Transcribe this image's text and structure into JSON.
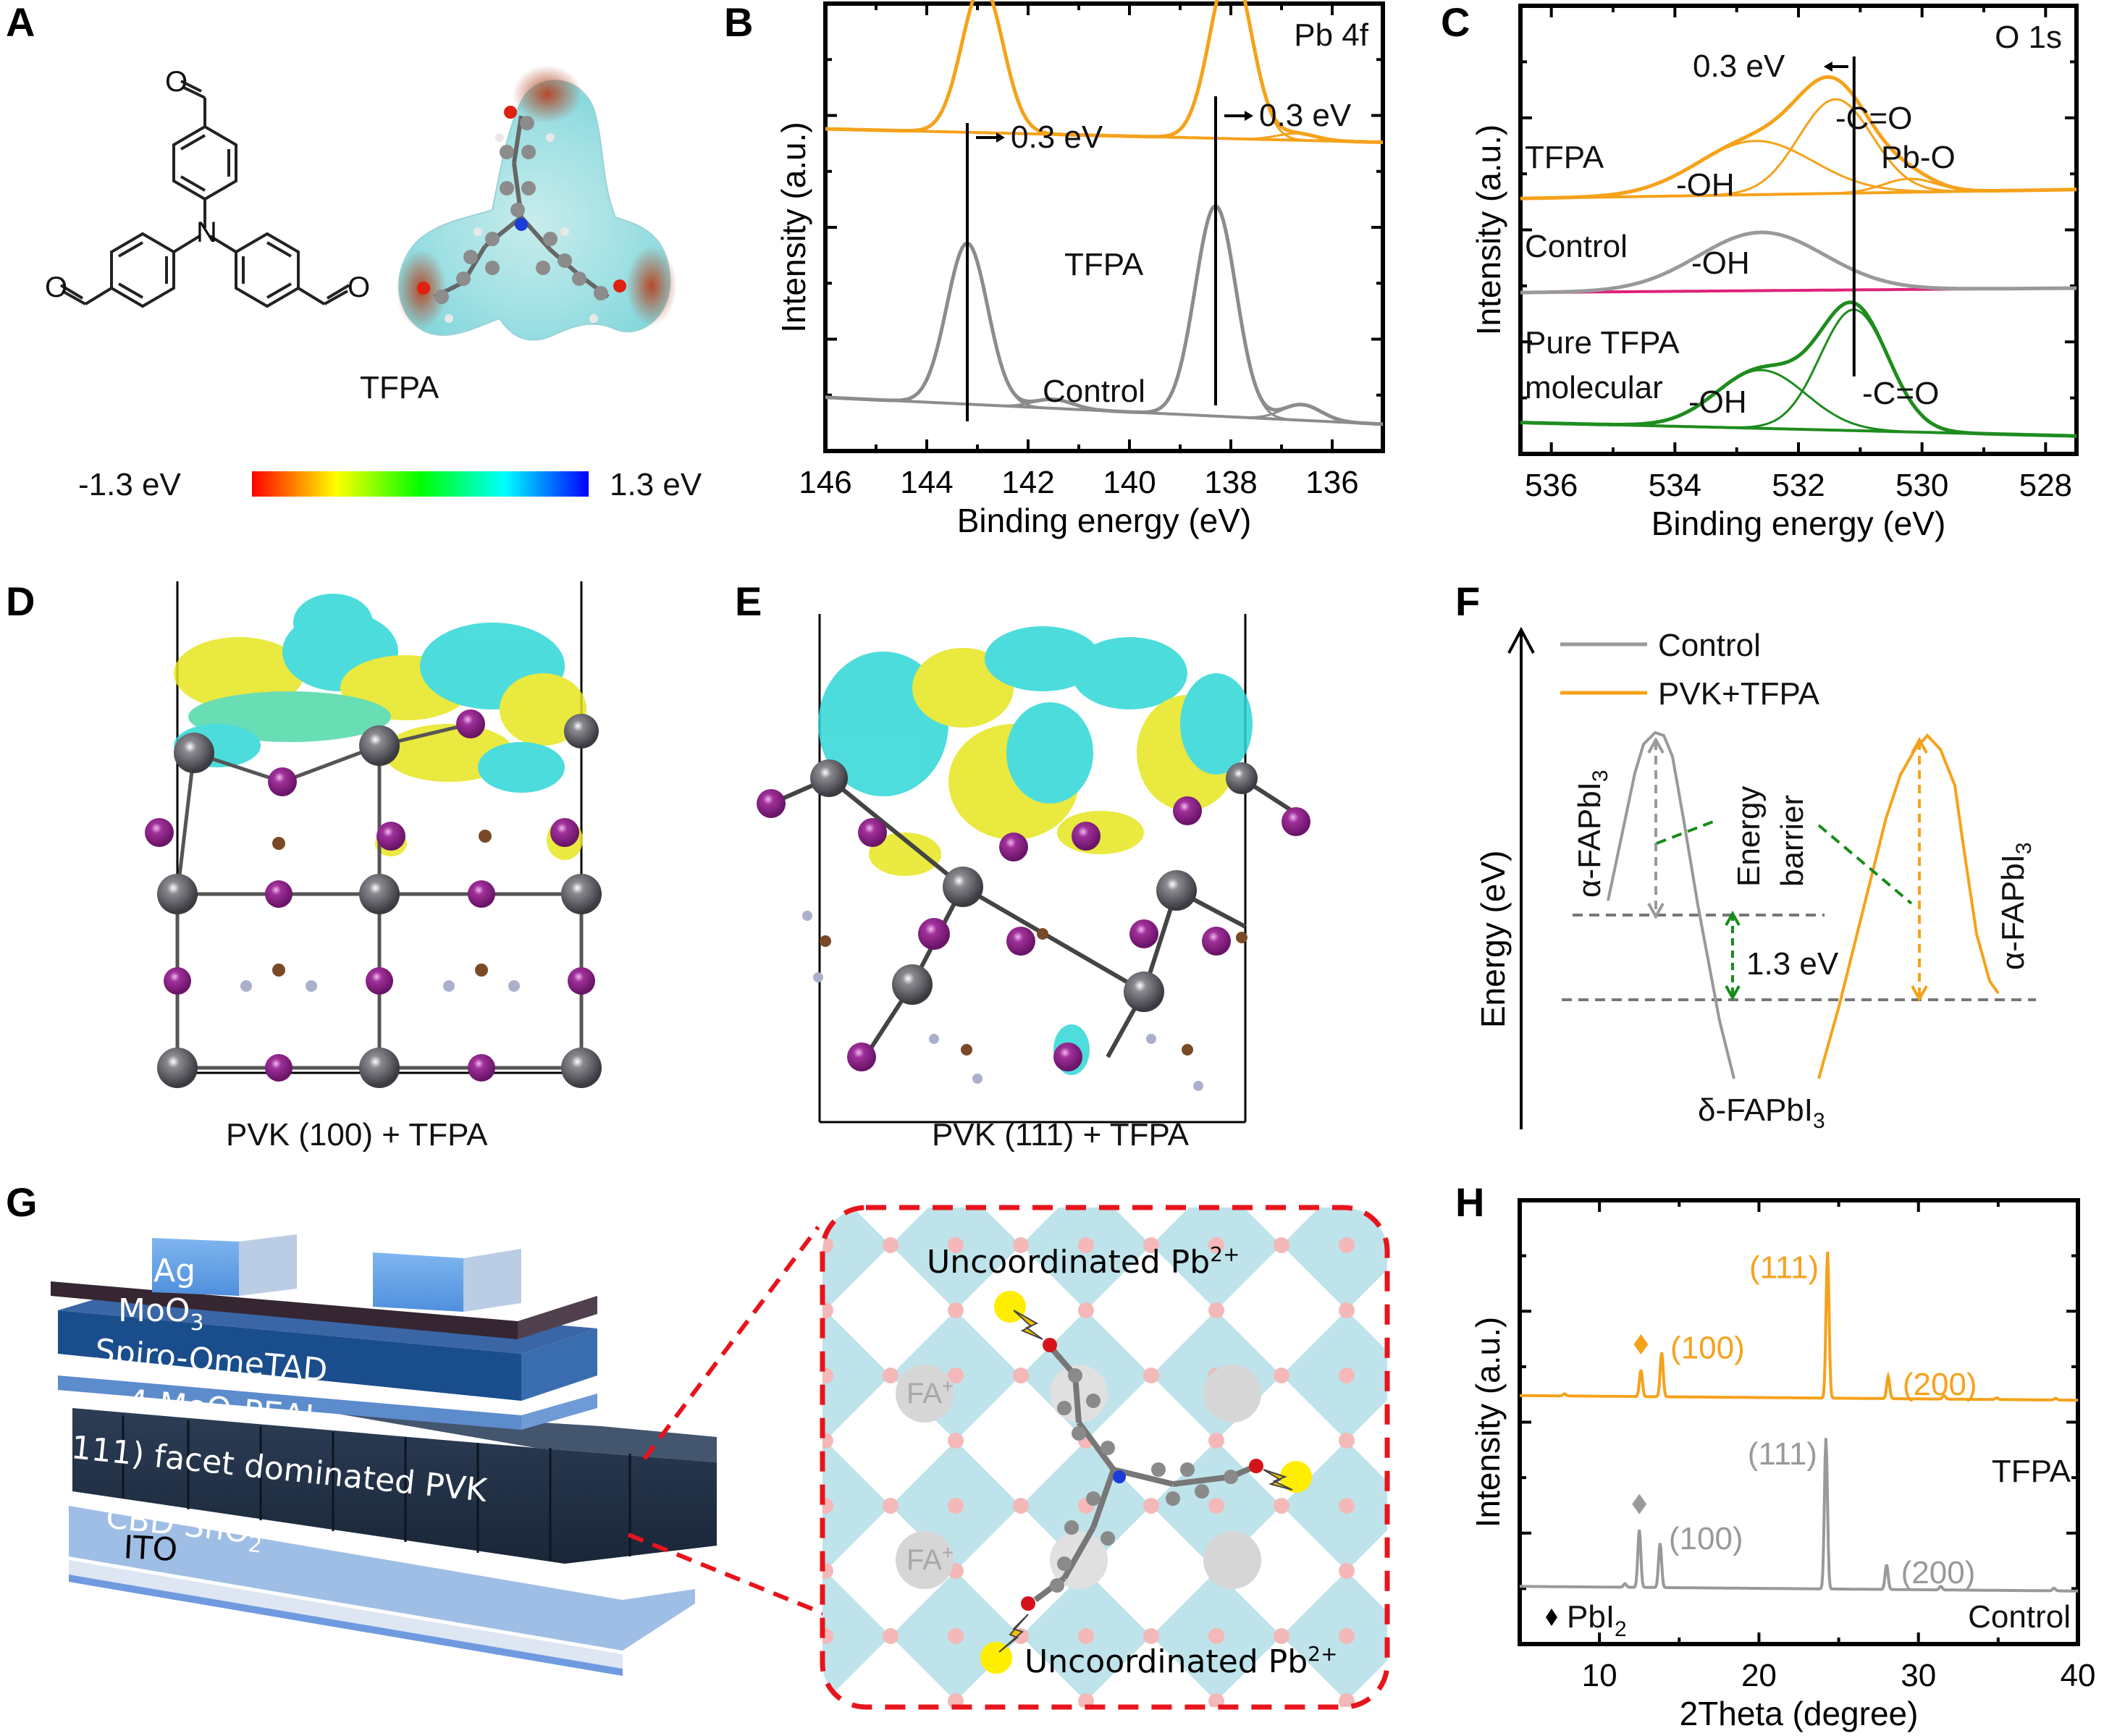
{
  "figure": {
    "panels": [
      "A",
      "B",
      "C",
      "D",
      "E",
      "F",
      "G",
      "H"
    ]
  },
  "panel_a": {
    "letter": "A",
    "molecule_name": "TFPA",
    "atom_N": "N",
    "atom_O": "O",
    "colorbar_min_label": "-1.3 eV",
    "colorbar_max_label": "1.3 eV",
    "colorbar_stops": [
      "#ff0000",
      "#ff8000",
      "#ffff00",
      "#00ff00",
      "#00ffff",
      "#0000ff"
    ]
  },
  "panel_d": {
    "letter": "D",
    "caption": "PVK (100) + TFPA"
  },
  "panel_e": {
    "letter": "E",
    "caption": "PVK (111) + TFPA"
  },
  "panel_f": {
    "letter": "F",
    "ylabel": "Energy (eV)",
    "legend": [
      {
        "name": "Control",
        "color": "#999999"
      },
      {
        "name": "PVK+TFPA",
        "color": "#f5a21b"
      }
    ],
    "label_alpha_left": "α-FAPbI",
    "label_alpha_right": "α-FAPbI",
    "label_delta": "δ-FAPbI",
    "subscript": "3",
    "barrier_line1": "Energy",
    "barrier_line2": "barrier",
    "gap_label": "1.3 eV",
    "gap_color": "#1a8a1a"
  },
  "panel_g": {
    "letter": "G",
    "layers": [
      "Ag",
      "MoO",
      "Spiro-OmeTAD",
      "4-MeO-PEAI",
      "(111) facet dominated PVK",
      "CBD SnO",
      "ITO"
    ],
    "layer_subscripts": {
      "MoO": "3",
      "CBD SnO": "2"
    },
    "zoom_label_top": "Uncoordinated Pb",
    "zoom_label_bottom": "Uncoordinated Pb",
    "charge": "2+",
    "cation": "FA",
    "cation_charge": "+",
    "zoom_border_color": "#e8141c"
  },
  "chart_data": [
    {
      "panel": "B",
      "type": "line",
      "title": "Pb 4f",
      "xlabel": "Binding energy (eV)",
      "ylabel": "Intensity (a.u.)",
      "xlim": [
        146,
        135
      ],
      "x_ticks": [
        146,
        144,
        142,
        140,
        138,
        136
      ],
      "y_ticks_labeled": false,
      "legend": "none",
      "annotations": [
        {
          "text": "0.3 eV",
          "x": 143.1,
          "arrow": "right"
        },
        {
          "text": "0.3 eV",
          "x": 138.3,
          "arrow": "right"
        }
      ],
      "reference_lines_x": [
        143.2,
        138.3
      ],
      "series": [
        {
          "name": "TFPA",
          "color": "#f5a21b",
          "baseline": [
            0.72,
            0.69
          ],
          "peaks": [
            {
              "center": 142.9,
              "height": 0.33,
              "fwhm": 0.95
            },
            {
              "center": 138.0,
              "height": 0.39,
              "fwhm": 0.95
            },
            {
              "center": 136.7,
              "height": 0.015,
              "fwhm": 0.9
            }
          ]
        },
        {
          "name": "Control",
          "color": "#8c8c8c",
          "baseline": [
            0.12,
            0.06
          ],
          "peaks": [
            {
              "center": 143.2,
              "height": 0.36,
              "fwhm": 0.95
            },
            {
              "center": 141.5,
              "height": 0.02,
              "fwhm": 0.9
            },
            {
              "center": 138.3,
              "height": 0.47,
              "fwhm": 0.95
            },
            {
              "center": 136.6,
              "height": 0.035,
              "fwhm": 0.9
            }
          ]
        }
      ]
    },
    {
      "panel": "C",
      "type": "line",
      "title": "O 1s",
      "xlabel": "Binding energy (eV)",
      "ylabel": "Intensity (a.u.)",
      "xlim": [
        536.5,
        527.5
      ],
      "x_ticks": [
        536,
        534,
        532,
        530,
        528
      ],
      "y_ticks_labeled": false,
      "legend": "none",
      "annotations": [
        {
          "text": "0.3 eV",
          "arrow": "left",
          "x": 531.1
        },
        {
          "text": "-C=O",
          "series": "TFPA"
        },
        {
          "text": "-OH",
          "series": "TFPA"
        },
        {
          "text": "Pb-O",
          "series": "TFPA"
        },
        {
          "text": "-OH",
          "series": "Control"
        },
        {
          "text": "-C=O",
          "series": "Pure TFPA molecular"
        },
        {
          "text": "-OH",
          "series": "Pure TFPA molecular"
        }
      ],
      "reference_lines_x": [
        531.1
      ],
      "series": [
        {
          "name": "TFPA",
          "color": "#f5a21b",
          "baseline": [
            0.57,
            0.59
          ],
          "peaks": [
            {
              "label": "-OH",
              "center": 532.7,
              "height": 0.12,
              "fwhm": 2.2
            },
            {
              "label": "-C=O",
              "center": 531.4,
              "height": 0.21,
              "fwhm": 1.4
            },
            {
              "label": "Pb-O",
              "center": 530.2,
              "height": 0.03,
              "fwhm": 1.0
            }
          ]
        },
        {
          "name": "Control",
          "color": "#999999",
          "background_color": "#e0217a",
          "baseline": [
            0.36,
            0.37
          ],
          "peaks": [
            {
              "label": "-OH",
              "center": 532.6,
              "height": 0.13,
              "fwhm": 2.4
            }
          ]
        },
        {
          "name": "Pure TFPA molecular",
          "color": "#1e8c1e",
          "baseline": [
            0.07,
            0.04
          ],
          "peaks": [
            {
              "label": "-OH",
              "center": 532.6,
              "height": 0.13,
              "fwhm": 1.7
            },
            {
              "label": "-C=O",
              "center": 531.1,
              "height": 0.27,
              "fwhm": 1.3
            }
          ]
        }
      ]
    },
    {
      "panel": "H",
      "type": "line",
      "xlabel": "2Theta (degree)",
      "ylabel": "Intensity (a.u.)",
      "xlim": [
        5,
        40
      ],
      "x_ticks": [
        10,
        20,
        30,
        40
      ],
      "y_ticks_labeled": false,
      "legend_note": "♦ PbI2",
      "legend": "bottom-left",
      "series": [
        {
          "name": "TFPA",
          "color": "#f5a21b",
          "baseline": 0.56,
          "peaks": [
            {
              "x": 7.8,
              "height": 0.005,
              "label": ""
            },
            {
              "x": 12.6,
              "height": 0.06,
              "label": "♦"
            },
            {
              "x": 13.9,
              "height": 0.1,
              "label": "(100)"
            },
            {
              "x": 24.3,
              "height": 0.33,
              "label": "(111)"
            },
            {
              "x": 28.1,
              "height": 0.05,
              "label": "(200)"
            },
            {
              "x": 31.6,
              "height": 0.008,
              "label": ""
            },
            {
              "x": 34.9,
              "height": 0.004,
              "label": ""
            },
            {
              "x": 38.6,
              "height": 0.004,
              "label": ""
            }
          ]
        },
        {
          "name": "Control",
          "color": "#999999",
          "baseline": 0.13,
          "peaks": [
            {
              "x": 11.6,
              "height": 0.008,
              "label": ""
            },
            {
              "x": 12.5,
              "height": 0.13,
              "label": "♦"
            },
            {
              "x": 13.8,
              "height": 0.1,
              "label": "(100)"
            },
            {
              "x": 24.2,
              "height": 0.34,
              "label": "(111)"
            },
            {
              "x": 28.0,
              "height": 0.056,
              "label": "(200)"
            },
            {
              "x": 31.4,
              "height": 0.008,
              "label": ""
            },
            {
              "x": 38.5,
              "height": 0.006,
              "label": ""
            }
          ]
        }
      ]
    },
    {
      "panel": "F",
      "type": "line",
      "title": "",
      "xlabel": "",
      "ylabel": "Energy (eV)",
      "legend": "top-left",
      "series": [
        {
          "name": "Control",
          "color": "#999999",
          "note": "barrier from α-FAPbI3 to δ-FAPbI3"
        },
        {
          "name": "PVK+TFPA",
          "color": "#f5a21b",
          "note": "higher barrier"
        }
      ],
      "annotations": [
        {
          "text": "1.3 eV",
          "meaning": "energy difference between levels"
        }
      ]
    }
  ]
}
